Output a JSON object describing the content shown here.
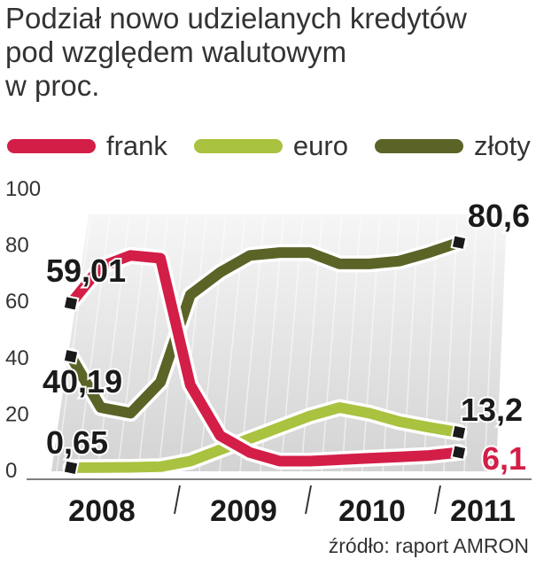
{
  "title": {
    "line1": "Podział nowo udzielanych kredytów",
    "line2": "pod względem walutowym",
    "line3": "w proc."
  },
  "source": "źródło: raport AMRON",
  "chart_data": {
    "type": "line",
    "title": "Podział nowo udzielanych kredytów pod względem walutowym",
    "ylabel": "w proc.",
    "xlabel": "",
    "ylim": [
      0,
      100
    ],
    "yticks": [
      "0",
      "20",
      "40",
      "60",
      "80",
      "100"
    ],
    "years": [
      "2008",
      "2009",
      "2010",
      "2011"
    ],
    "x": [
      0,
      1,
      2,
      3,
      4,
      5,
      6,
      7,
      8,
      9,
      10,
      11,
      12,
      13
    ],
    "legend_position": "top",
    "grid": false,
    "series": [
      {
        "name": "frank",
        "color": "#d31e47",
        "values": [
          59.01,
          72,
          76,
          75,
          30,
          12,
          6,
          3,
          3,
          3.5,
          4,
          4.5,
          5,
          6.1
        ]
      },
      {
        "name": "euro",
        "color": "#a9c23f",
        "values": [
          0.65,
          0.7,
          0.8,
          1,
          3,
          7,
          11,
          15,
          19,
          22,
          20,
          17,
          15,
          13.2
        ]
      },
      {
        "name": "złoty",
        "color": "#5b6327",
        "values": [
          40.19,
          22,
          20,
          31,
          62,
          70,
          76,
          77,
          77,
          73,
          73,
          74,
          77,
          80.6
        ]
      }
    ],
    "annotations": {
      "frank_start": "59,01",
      "frank_end": "6,1",
      "euro_start": "0,65",
      "euro_end": "13,2",
      "zloty_start": "40,19",
      "zloty_end": "80,6"
    }
  }
}
